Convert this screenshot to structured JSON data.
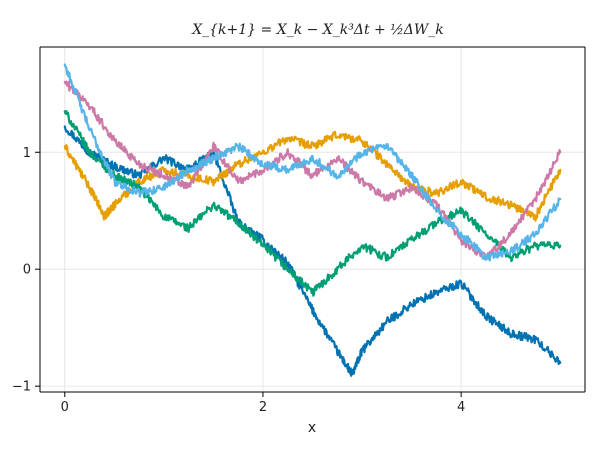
{
  "chart_data": {
    "type": "line",
    "title": "X_{k+1} = X_k − X_k³Δt + ½ΔW_k",
    "xlabel": "x",
    "ylabel": "",
    "xlim": [
      -0.25,
      5.25
    ],
    "ylim": [
      -1.05,
      1.9
    ],
    "xticks": [
      0,
      2,
      4
    ],
    "yticks": [
      -1,
      0,
      1
    ],
    "grid": true,
    "series": [
      {
        "color": "#0072b2",
        "x": [
          0,
          0.25,
          0.5,
          0.75,
          1.0,
          1.25,
          1.5,
          1.75,
          2.0,
          2.25,
          2.5,
          2.75,
          2.9,
          3.0,
          3.25,
          3.5,
          3.75,
          4.0,
          4.25,
          4.5,
          4.75,
          5.0
        ],
        "y": [
          1.22,
          1.0,
          0.88,
          0.8,
          0.95,
          0.85,
          1.0,
          0.4,
          0.25,
          0.05,
          -0.35,
          -0.7,
          -0.9,
          -0.7,
          -0.45,
          -0.3,
          -0.2,
          -0.12,
          -0.4,
          -0.55,
          -0.6,
          -0.8
        ]
      },
      {
        "color": "#e69f00",
        "x": [
          0,
          0.25,
          0.4,
          0.5,
          0.75,
          1.0,
          1.25,
          1.5,
          1.75,
          2.0,
          2.25,
          2.5,
          2.75,
          3.0,
          3.25,
          3.5,
          3.75,
          4.0,
          4.25,
          4.5,
          4.75,
          5.0
        ],
        "y": [
          1.05,
          0.7,
          0.45,
          0.55,
          0.75,
          0.85,
          0.8,
          0.75,
          0.9,
          1.0,
          1.12,
          1.05,
          1.15,
          1.1,
          0.9,
          0.7,
          0.65,
          0.75,
          0.62,
          0.55,
          0.45,
          0.85
        ]
      },
      {
        "color": "#009e73",
        "x": [
          0,
          0.25,
          0.5,
          0.75,
          1.0,
          1.25,
          1.5,
          1.75,
          2.0,
          2.25,
          2.5,
          2.75,
          3.0,
          3.25,
          3.5,
          3.75,
          4.0,
          4.25,
          4.5,
          4.75,
          5.0
        ],
        "y": [
          1.35,
          1.0,
          0.8,
          0.7,
          0.45,
          0.35,
          0.55,
          0.4,
          0.2,
          0.0,
          -0.2,
          0.0,
          0.2,
          0.1,
          0.25,
          0.4,
          0.5,
          0.3,
          0.1,
          0.2,
          0.2
        ]
      },
      {
        "color": "#cc79a7",
        "x": [
          0,
          0.25,
          0.5,
          0.75,
          1.0,
          1.25,
          1.5,
          1.75,
          2.0,
          2.25,
          2.5,
          2.75,
          3.0,
          3.25,
          3.5,
          3.75,
          4.0,
          4.25,
          4.5,
          4.75,
          5.0
        ],
        "y": [
          1.6,
          1.4,
          1.1,
          0.9,
          0.8,
          0.7,
          1.05,
          0.75,
          0.85,
          1.0,
          0.8,
          0.95,
          0.75,
          0.6,
          0.7,
          0.55,
          0.25,
          0.1,
          0.3,
          0.6,
          1.0
        ]
      },
      {
        "color": "#56b4e9",
        "x": [
          0,
          0.25,
          0.5,
          0.75,
          1.0,
          1.25,
          1.5,
          1.75,
          2.0,
          2.25,
          2.5,
          2.75,
          3.0,
          3.25,
          3.5,
          3.75,
          4.0,
          4.25,
          4.5,
          4.75,
          5.0
        ],
        "y": [
          1.75,
          1.2,
          0.75,
          0.65,
          0.7,
          0.85,
          0.95,
          1.05,
          0.9,
          0.85,
          0.95,
          0.8,
          1.0,
          1.05,
          0.8,
          0.5,
          0.3,
          0.1,
          0.15,
          0.3,
          0.6
        ]
      }
    ]
  }
}
